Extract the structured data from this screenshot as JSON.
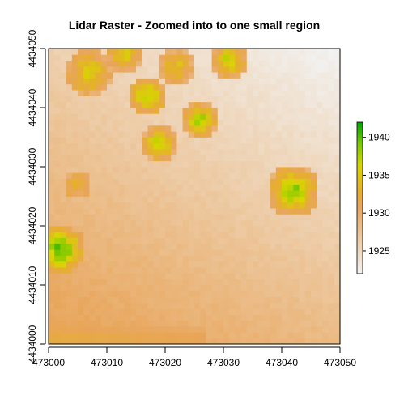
{
  "chart_data": {
    "type": "heatmap",
    "title": "Lidar Raster - Zoomed into to one small region",
    "xlabel": "",
    "ylabel": "",
    "xlim": [
      473000,
      473050
    ],
    "ylim": [
      4434000,
      4434050
    ],
    "x_ticks": [
      {
        "value": 473000,
        "label": "473000"
      },
      {
        "value": 473010,
        "label": "473010"
      },
      {
        "value": 473020,
        "label": "473020"
      },
      {
        "value": 473030,
        "label": "473030"
      },
      {
        "value": 473040,
        "label": "473040"
      },
      {
        "value": 473050,
        "label": "473050"
      }
    ],
    "y_ticks": [
      {
        "value": 4434000,
        "label": "4434000"
      },
      {
        "value": 4434010,
        "label": "4434010"
      },
      {
        "value": 4434020,
        "label": "4434020"
      },
      {
        "value": 4434030,
        "label": "4434030"
      },
      {
        "value": 4434040,
        "label": "4434040"
      },
      {
        "value": 4434050,
        "label": "4434050"
      }
    ],
    "raster": {
      "cell_size": 1,
      "value_range": [
        1922,
        1942
      ],
      "surface": {
        "northwest": 1926,
        "northeast": 1922,
        "southwest": 1931.5,
        "southeast": 1928.5
      },
      "canopy_features": [
        {
          "x": 473002,
          "y": 4434016,
          "radius": 4.5,
          "peak_height": 1941.5
        },
        {
          "x": 473005,
          "y": 4434027,
          "radius": 2.5,
          "peak_height": 1934
        },
        {
          "x": 473019,
          "y": 4434034,
          "radius": 3.0,
          "peak_height": 1938.5
        },
        {
          "x": 473017,
          "y": 4434042,
          "radius": 3.5,
          "peak_height": 1938
        },
        {
          "x": 473026,
          "y": 4434038,
          "radius": 3.0,
          "peak_height": 1939
        },
        {
          "x": 473042,
          "y": 4434026,
          "radius": 4.5,
          "peak_height": 1940
        },
        {
          "x": 473031,
          "y": 4434048,
          "radius": 3.0,
          "peak_height": 1938
        },
        {
          "x": 473007,
          "y": 4434046,
          "radius": 4.0,
          "peak_height": 1936
        },
        {
          "x": 473022,
          "y": 4434047,
          "radius": 3.0,
          "peak_height": 1935
        },
        {
          "x": 473013,
          "y": 4434049,
          "radius": 3.0,
          "peak_height": 1936
        }
      ],
      "bright_band": {
        "y": 4434001,
        "peak_height": 1932.5
      }
    },
    "legend": {
      "position": "right",
      "min": 1922,
      "max": 1942,
      "ticks": [
        {
          "value": 1925,
          "label": "1925"
        },
        {
          "value": 1930,
          "label": "1930"
        },
        {
          "value": 1935,
          "label": "1935"
        },
        {
          "value": 1940,
          "label": "1940"
        }
      ]
    },
    "colors": {
      "palette_low": "#f2f2f2",
      "palette_mid": "#e8a55a",
      "palette_high_mid": "#d6d600",
      "palette_high": "#00a600",
      "axis": "#000000"
    }
  }
}
